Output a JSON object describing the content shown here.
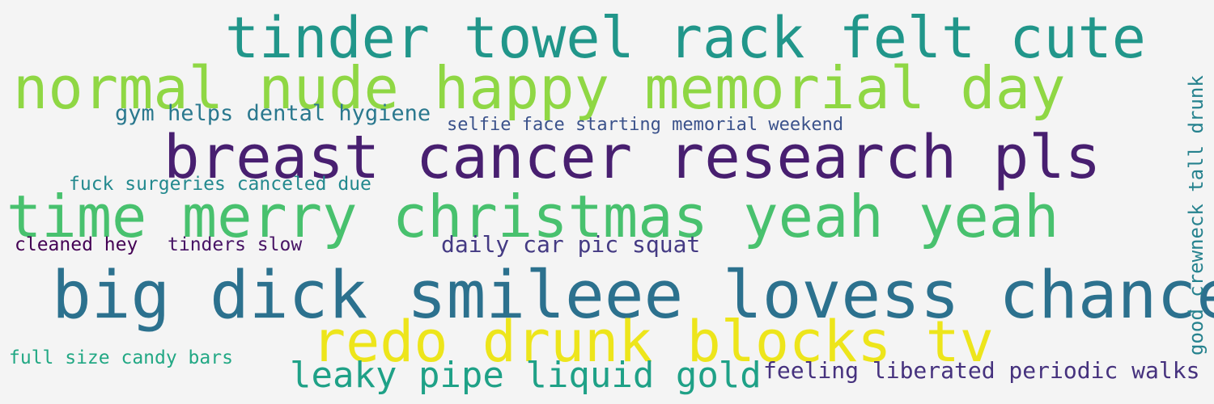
{
  "word_cloud": {
    "phrases": [
      {
        "text": "tinder towel rack felt cute",
        "color": "#21968a"
      },
      {
        "text": "normal nude happy memorial day",
        "color": "#8fd744"
      },
      {
        "text": "gym helps dental hygiene",
        "color": "#2a788e"
      },
      {
        "text": "selfie face starting memorial weekend",
        "color": "#3b528b"
      },
      {
        "text": "breast cancer research pls",
        "color": "#481f70"
      },
      {
        "text": "fuck surgeries canceled due",
        "color": "#23898e"
      },
      {
        "text": "time merry christmas yeah yeah",
        "color": "#48c16e"
      },
      {
        "text": "cleaned hey",
        "color": "#440154"
      },
      {
        "text": "tinders slow",
        "color": "#471365"
      },
      {
        "text": "daily car pic squat",
        "color": "#443a83"
      },
      {
        "text": "big dick smileee lovess chance",
        "color": "#2c718e"
      },
      {
        "text": "redo drunk blocks tv",
        "color": "#ede51b"
      },
      {
        "text": "full size candy bars",
        "color": "#22a884"
      },
      {
        "text": "leaky pipe liquid gold",
        "color": "#1fa187"
      },
      {
        "text": "feeling liberated periodic walks",
        "color": "#46327e"
      },
      {
        "text": "good crewneck tall drunk",
        "color": "#26828e"
      }
    ]
  }
}
